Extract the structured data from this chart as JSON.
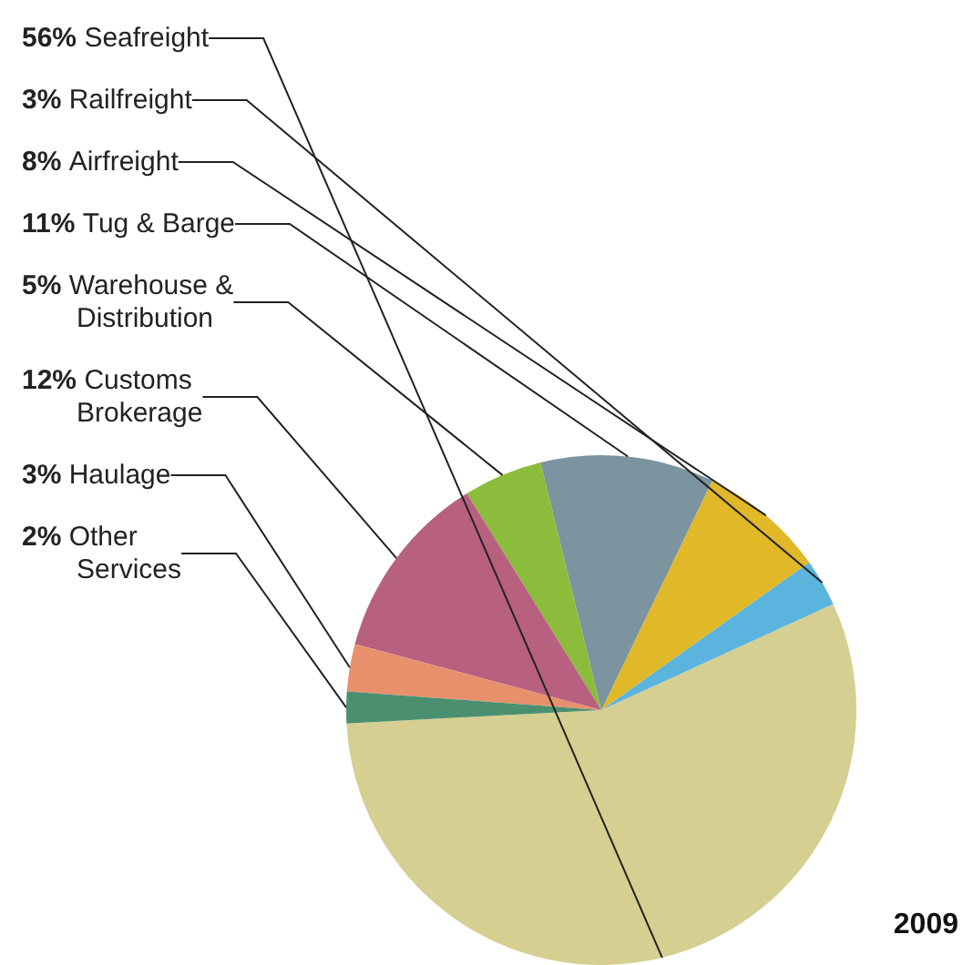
{
  "chart_data": {
    "type": "pie",
    "categories": [
      "Seafreight",
      "Railfreight",
      "Airfreight",
      "Tug & Barge",
      "Warehouse &\nDistribution",
      "Customs\nBrokerage",
      "Haulage",
      "Other\nServices"
    ],
    "values": [
      56,
      3,
      8,
      11,
      5,
      12,
      3,
      2
    ],
    "colors": [
      "#d6cf92",
      "#5ab4de",
      "#e0b828",
      "#7b94a0",
      "#8cbc3c",
      "#b86080",
      "#e8906c",
      "#4a9070"
    ],
    "value_labels": [
      "56%",
      "3%",
      "8%",
      "11%",
      "5%",
      "12%",
      "3%",
      "2%"
    ],
    "annotations": [
      "2009"
    ],
    "legend": false
  }
}
